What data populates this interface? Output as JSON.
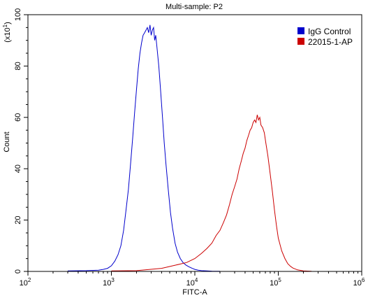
{
  "chart_data": {
    "type": "line",
    "title": "Multi-sample: P2",
    "xlabel": "FITC-A",
    "ylabel": "Count",
    "y_multiplier": "(x10",
    "y_multiplier_exp": "1",
    "y_multiplier_close": ")",
    "x_scale": "log",
    "xlim": [
      100,
      1000000
    ],
    "ylim": [
      0,
      100
    ],
    "x_ticks": [
      {
        "value": 100,
        "base": "10",
        "exp": "2"
      },
      {
        "value": 1000,
        "base": "10",
        "exp": "3"
      },
      {
        "value": 10000,
        "base": "10",
        "exp": "4"
      },
      {
        "value": 100000,
        "base": "10",
        "exp": "5"
      },
      {
        "value": 1000000,
        "base": "10",
        "exp": "6"
      }
    ],
    "y_ticks": [
      "0",
      "20",
      "40",
      "60",
      "80",
      "100"
    ],
    "y_tick_values": [
      0,
      20,
      40,
      60,
      80,
      100
    ],
    "legend_position": "top-right",
    "series": [
      {
        "name": "IgG Control",
        "color": "#0000cc",
        "x": [
          300,
          500,
          700,
          800,
          900,
          1000,
          1100,
          1200,
          1300,
          1400,
          1500,
          1600,
          1700,
          1800,
          1900,
          2000,
          2100,
          2200,
          2300,
          2400,
          2500,
          2600,
          2700,
          2800,
          2900,
          3000,
          3100,
          3200,
          3300,
          3400,
          3500,
          3700,
          3900,
          4100,
          4300,
          4500,
          4800,
          5100,
          5400,
          5800,
          6200,
          6700,
          7200,
          7800,
          8500,
          9300,
          10000,
          11000,
          12000,
          14000,
          16000,
          20000
        ],
        "y": [
          0.2,
          0.3,
          0.5,
          0.8,
          1.2,
          2.2,
          4,
          6.5,
          10,
          16,
          24,
          32,
          42,
          52,
          62,
          71,
          79,
          85,
          89,
          92,
          93,
          94,
          95,
          93,
          96,
          92,
          94,
          95,
          90,
          92,
          88,
          80,
          70,
          60,
          50,
          42,
          32,
          23,
          17,
          11,
          7.5,
          5,
          3.5,
          2.5,
          1.8,
          1.2,
          0.8,
          0.5,
          0.3,
          0.2,
          0.1,
          0.05
        ]
      },
      {
        "name": "22015-1-AP",
        "color": "#cc0000",
        "x": [
          1000,
          2000,
          4000,
          6000,
          8000,
          10000,
          12000,
          14000,
          16000,
          18000,
          20000,
          22000,
          24000,
          26000,
          28000,
          30000,
          32000,
          34000,
          36000,
          38000,
          40000,
          42000,
          44000,
          46000,
          48000,
          50000,
          52000,
          54000,
          56000,
          58000,
          60000,
          62000,
          65000,
          68000,
          71000,
          75000,
          80000,
          85000,
          90000,
          95000,
          100000,
          110000,
          120000,
          130000,
          140000,
          150000,
          170000,
          200000,
          250000
        ],
        "y": [
          0.2,
          0.3,
          1.2,
          2.5,
          3.5,
          5,
          7,
          9,
          11,
          14,
          16,
          19,
          22,
          26,
          30,
          33,
          36,
          40,
          43,
          46,
          48,
          51,
          53,
          55,
          56,
          58,
          59,
          58,
          61,
          59,
          60,
          57,
          56,
          54,
          50,
          45,
          38,
          31,
          24,
          18,
          13,
          8,
          5,
          3,
          2,
          1.3,
          0.6,
          0.2,
          0.05
        ]
      }
    ]
  }
}
